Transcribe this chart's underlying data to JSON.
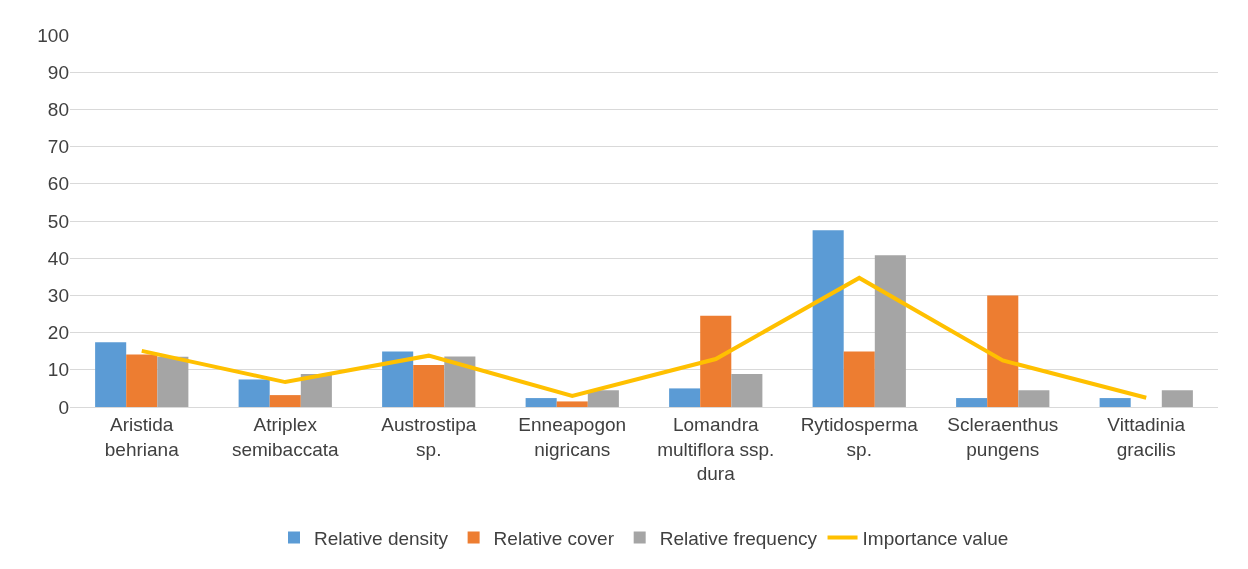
{
  "chart_data": {
    "type": "bar",
    "categories": [
      "Aristida behriana",
      "Atriplex semibaccata",
      "Austrostipa sp.",
      "Enneapogon nigricans",
      "Lomandra multiflora ssp. dura",
      "Rytidosperma sp.",
      "Scleraenthus pungens",
      "Vittadinia gracilis"
    ],
    "series": [
      {
        "name": "Relative density",
        "color": "#5b9bd5",
        "values": [
          17.4,
          7.4,
          14.9,
          2.4,
          5.0,
          47.5,
          2.4,
          2.4
        ]
      },
      {
        "name": "Relative cover",
        "color": "#ed7d31",
        "values": [
          14.1,
          3.2,
          11.3,
          1.5,
          24.5,
          14.9,
          30.0,
          0
        ]
      },
      {
        "name": "Relative frequency",
        "color": "#a5a5a5",
        "values": [
          13.5,
          8.9,
          13.6,
          4.5,
          8.9,
          40.8,
          4.5,
          4.5
        ]
      },
      {
        "name": "Importance value",
        "color": "#ffc000",
        "type": "line",
        "values": [
          15.1,
          6.7,
          13.8,
          3.0,
          12.9,
          34.7,
          12.5,
          2.5
        ]
      }
    ],
    "ylim": [
      0,
      100
    ],
    "yticks": [
      0,
      10,
      20,
      30,
      40,
      50,
      60,
      70,
      80,
      90,
      100
    ],
    "grid": "y",
    "legend": "bottom",
    "marker": "none",
    "line_style": "solid"
  }
}
